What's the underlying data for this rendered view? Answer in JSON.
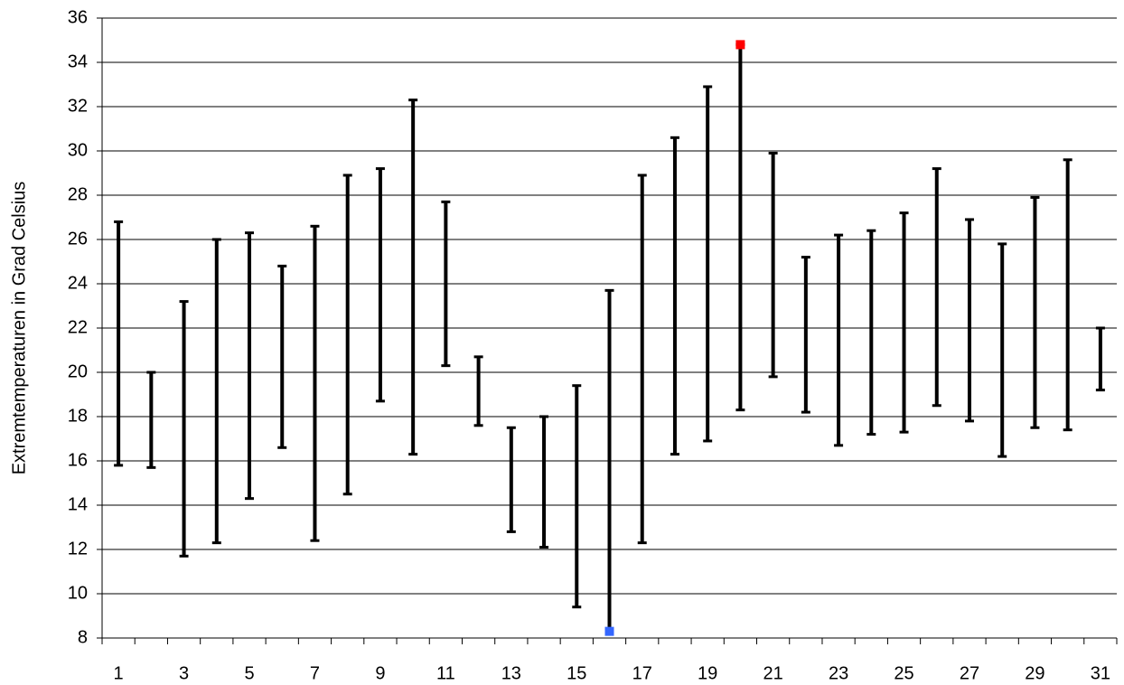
{
  "chart_data": {
    "type": "high-low",
    "ylabel": "Extremtemperaturen in Grad Celsius",
    "categories": [
      "1",
      null,
      "3",
      null,
      "5",
      null,
      "7",
      null,
      "9",
      null,
      "11",
      null,
      "13",
      null,
      "15",
      null,
      "17",
      null,
      "19",
      null,
      "21",
      null,
      "23",
      null,
      "25",
      null,
      "27",
      null,
      "29",
      null,
      "31"
    ],
    "high": [
      26.8,
      20.0,
      23.2,
      26.0,
      26.3,
      24.8,
      26.6,
      28.9,
      29.2,
      32.3,
      27.7,
      20.7,
      17.5,
      18.0,
      19.4,
      23.7,
      28.9,
      30.6,
      32.9,
      34.8,
      29.9,
      25.2,
      26.2,
      26.4,
      27.2,
      29.2,
      26.9,
      25.8,
      27.9,
      29.6,
      22.0
    ],
    "low": [
      15.8,
      15.7,
      11.7,
      12.3,
      14.3,
      16.6,
      12.4,
      14.5,
      18.7,
      16.3,
      20.3,
      17.6,
      12.8,
      12.1,
      9.4,
      8.3,
      12.3,
      16.3,
      16.9,
      18.3,
      19.8,
      18.2,
      16.7,
      17.2,
      17.3,
      18.5,
      17.8,
      16.2,
      17.5,
      17.4,
      19.2
    ],
    "color": "#000000",
    "max_marker_color": "#ff0000",
    "min_marker_color": "#3366ff",
    "ylim": [
      8,
      36
    ],
    "yticks": [
      8,
      10,
      12,
      14,
      16,
      18,
      20,
      22,
      24,
      26,
      28,
      30,
      32,
      34,
      36
    ],
    "grid": true
  }
}
